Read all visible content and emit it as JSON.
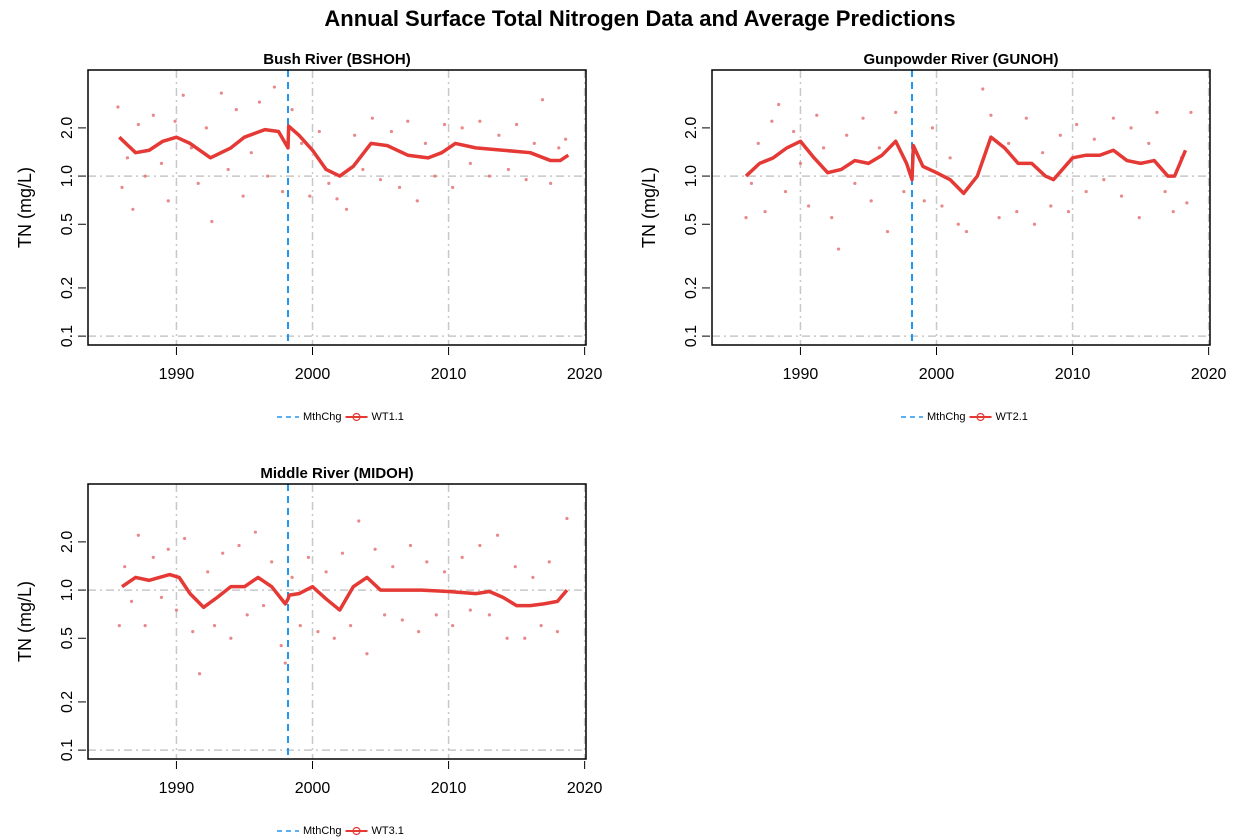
{
  "title": "Annual Surface Total Nitrogen Data and Average Predictions",
  "chart_data": [
    {
      "type": "line",
      "title": "Bush River (BSHOH)",
      "y_label": "TN (mg/L)",
      "log_y": true,
      "grid": true,
      "legend": "bottom",
      "xlim": [
        1983.5,
        2020.1
      ],
      "ylim": [
        0.088,
        4.6
      ],
      "xticks": [
        1990,
        2000,
        2010,
        2020
      ],
      "yticks": [
        0.1,
        0.2,
        0.5,
        {
          "value": 1,
          "label": "1.0"
        },
        {
          "value": 2,
          "label": "2.0"
        }
      ],
      "points": {
        "color": "#e57373",
        "x": [
          1985.7,
          1986,
          1986.4,
          1986.8,
          1987.2,
          1987.7,
          1988.3,
          1988.9,
          1989.4,
          1989.9,
          1990.5,
          1991.1,
          1991.6,
          1992.2,
          1992.6,
          1993.3,
          1993.8,
          1994.4,
          1994.9,
          1995.5,
          1996.1,
          1996.7,
          1997.2,
          1997.8,
          1998.5,
          1999.2,
          1999.8,
          2000.5,
          2001.2,
          2001.8,
          2002.5,
          2003.1,
          2003.7,
          2004.4,
          2005,
          2005.8,
          2006.4,
          2007,
          2007.7,
          2008.3,
          2009,
          2009.7,
          2010.3,
          2011,
          2011.6,
          2012.3,
          2013,
          2013.7,
          2014.4,
          2015,
          2015.7,
          2016.3,
          2016.9,
          2017.5,
          2018.1,
          2018.6
        ],
        "values": [
          2.7,
          0.85,
          1.3,
          0.62,
          2.1,
          1.0,
          2.4,
          1.2,
          0.7,
          2.2,
          3.2,
          1.5,
          0.9,
          2.0,
          0.52,
          3.3,
          1.1,
          2.6,
          0.75,
          1.4,
          2.9,
          1.0,
          3.6,
          0.8,
          2.6,
          1.6,
          0.75,
          1.9,
          0.9,
          0.72,
          0.62,
          1.8,
          1.1,
          2.3,
          0.95,
          1.9,
          0.85,
          2.2,
          0.7,
          1.6,
          1.0,
          2.1,
          0.85,
          2.0,
          1.2,
          2.2,
          1.0,
          1.8,
          1.1,
          2.1,
          0.95,
          1.6,
          3.0,
          0.9,
          1.5,
          1.7
        ]
      },
      "series": [
        {
          "name": "MthChg",
          "color": "#2196f3",
          "x": 1998.2
        },
        {
          "name": "WT1.1",
          "color": "#e53935",
          "x": [
            1985.8,
            1987,
            1988,
            1989,
            1990,
            1991,
            1992.5,
            1994,
            1995,
            1996.5,
            1997.5,
            1998.2,
            1998.25,
            1999,
            2000,
            2001,
            2002,
            2003,
            2004.3,
            2005.5,
            2007,
            2008.5,
            2009.5,
            2010.5,
            2012,
            2014,
            2016,
            2017.5,
            2018.2,
            2018.8
          ],
          "values": [
            1.75,
            1.4,
            1.45,
            1.65,
            1.75,
            1.6,
            1.3,
            1.5,
            1.75,
            1.95,
            1.9,
            1.5,
            2.05,
            1.8,
            1.45,
            1.1,
            1.0,
            1.15,
            1.6,
            1.55,
            1.35,
            1.3,
            1.4,
            1.6,
            1.5,
            1.45,
            1.4,
            1.25,
            1.25,
            1.35
          ]
        }
      ]
    },
    {
      "type": "line",
      "title": "Gunpowder River (GUNOH)",
      "y_label": "TN (mg/L)",
      "log_y": true,
      "grid": true,
      "legend": "bottom",
      "xlim": [
        1983.5,
        2020.1
      ],
      "ylim": [
        0.088,
        4.6
      ],
      "xticks": [
        1990,
        2000,
        2010,
        2020
      ],
      "yticks": [
        0.1,
        0.2,
        0.5,
        {
          "value": 1,
          "label": "1.0"
        },
        {
          "value": 2,
          "label": "2.0"
        }
      ],
      "points": {
        "color": "#e57373",
        "x": [
          1986,
          1986.4,
          1986.9,
          1987.4,
          1987.9,
          1988.4,
          1988.9,
          1989.5,
          1990,
          1990.6,
          1991.2,
          1991.7,
          1992.3,
          1992.8,
          1993.4,
          1994,
          1994.6,
          1995.2,
          1995.8,
          1996.4,
          1997,
          1997.6,
          1998.5,
          1999.1,
          1999.7,
          2000.4,
          2001,
          2001.6,
          2002.2,
          2002.8,
          2003.4,
          2004,
          2004.6,
          2005.3,
          2005.9,
          2006.6,
          2007.2,
          2007.8,
          2008.4,
          2009.1,
          2009.7,
          2010.3,
          2011,
          2011.6,
          2012.3,
          2013,
          2013.6,
          2014.3,
          2014.9,
          2015.6,
          2016.2,
          2016.8,
          2017.4,
          2018,
          2018.4,
          2018.7
        ],
        "values": [
          0.55,
          0.9,
          1.6,
          0.6,
          2.2,
          2.8,
          0.8,
          1.9,
          1.2,
          0.65,
          2.4,
          1.5,
          0.55,
          0.35,
          1.8,
          0.9,
          2.3,
          0.7,
          1.5,
          0.45,
          2.5,
          0.8,
          1.4,
          0.7,
          2.0,
          0.65,
          1.3,
          0.5,
          0.45,
          0.95,
          3.5,
          2.4,
          0.55,
          1.6,
          0.6,
          2.3,
          0.5,
          1.4,
          0.65,
          1.8,
          0.6,
          2.1,
          0.8,
          1.7,
          0.95,
          2.3,
          0.75,
          2.0,
          0.55,
          1.6,
          2.5,
          0.8,
          0.6,
          1.3,
          0.68,
          2.5
        ]
      },
      "series": [
        {
          "name": "MthChg",
          "color": "#2196f3",
          "x": 1998.2
        },
        {
          "name": "WT2.1",
          "color": "#e53935",
          "x": [
            1986,
            1987,
            1988,
            1989,
            1990,
            1991,
            1992,
            1993,
            1994,
            1995,
            1996,
            1997,
            1997.8,
            1998.2,
            1998.3,
            1999,
            2000,
            2001,
            2002,
            2003,
            2004,
            2005,
            2006,
            2007,
            2008,
            2008.6,
            2010,
            2011,
            2012,
            2013,
            2014,
            2015,
            2016,
            2017,
            2017.5,
            2018.3
          ],
          "values": [
            1.0,
            1.2,
            1.3,
            1.5,
            1.65,
            1.3,
            1.05,
            1.1,
            1.25,
            1.2,
            1.35,
            1.65,
            1.2,
            0.95,
            1.55,
            1.15,
            1.05,
            0.95,
            0.78,
            1.0,
            1.75,
            1.5,
            1.2,
            1.2,
            1.0,
            0.95,
            1.3,
            1.35,
            1.35,
            1.45,
            1.25,
            1.2,
            1.25,
            1.0,
            1.0,
            1.45
          ]
        }
      ]
    },
    {
      "type": "line",
      "title": "Middle River (MIDOH)",
      "y_label": "TN (mg/L)",
      "log_y": true,
      "grid": true,
      "legend": "bottom",
      "xlim": [
        1983.5,
        2020.1
      ],
      "ylim": [
        0.088,
        4.6
      ],
      "xticks": [
        1990,
        2000,
        2010,
        2020
      ],
      "yticks": [
        0.1,
        0.2,
        0.5,
        {
          "value": 1,
          "label": "1.0"
        },
        {
          "value": 2,
          "label": "2.0"
        }
      ],
      "points": {
        "color": "#e57373",
        "x": [
          1985.8,
          1986.2,
          1986.7,
          1987.2,
          1987.7,
          1988.3,
          1988.9,
          1989.4,
          1990,
          1990.6,
          1991.2,
          1991.7,
          1992.3,
          1992.8,
          1993.4,
          1994,
          1994.6,
          1995.2,
          1995.8,
          1996.4,
          1997,
          1997.7,
          1998,
          1998.5,
          1999.1,
          1999.7,
          2000.4,
          2001,
          2001.6,
          2002.2,
          2002.8,
          2003.4,
          2004,
          2004.6,
          2005.3,
          2005.9,
          2006.6,
          2007.2,
          2007.8,
          2008.4,
          2009.1,
          2009.7,
          2010.3,
          2011,
          2011.6,
          2012.3,
          2013,
          2013.6,
          2014.3,
          2014.9,
          2015.6,
          2016.2,
          2016.8,
          2017.4,
          2018,
          2018.7
        ],
        "values": [
          0.6,
          1.4,
          0.85,
          2.2,
          0.6,
          1.6,
          0.9,
          1.8,
          0.75,
          2.1,
          0.55,
          0.3,
          1.3,
          0.6,
          1.7,
          0.5,
          1.9,
          0.7,
          2.3,
          0.8,
          1.5,
          0.45,
          0.35,
          1.2,
          0.6,
          1.6,
          0.55,
          1.3,
          0.5,
          1.7,
          0.6,
          2.7,
          0.4,
          1.8,
          0.7,
          1.4,
          0.65,
          1.9,
          0.55,
          1.5,
          0.7,
          1.3,
          0.6,
          1.6,
          0.75,
          1.9,
          0.7,
          2.2,
          0.5,
          1.4,
          0.5,
          1.2,
          0.6,
          1.5,
          0.55,
          2.8
        ]
      },
      "series": [
        {
          "name": "MthChg",
          "color": "#2196f3",
          "x": 1998.2
        },
        {
          "name": "WT3.1",
          "color": "#e53935",
          "x": [
            1986,
            1987,
            1988,
            1989.5,
            1990.2,
            1991,
            1992,
            1993,
            1994,
            1995,
            1996,
            1997,
            1998,
            1998.2,
            1998.3,
            1999,
            2000,
            2001,
            2002,
            2003,
            2004,
            2005,
            2006,
            2008,
            2010,
            2012,
            2013,
            2014,
            2015,
            2016,
            2017,
            2018,
            2018.7
          ],
          "values": [
            1.05,
            1.2,
            1.15,
            1.25,
            1.2,
            0.95,
            0.78,
            0.9,
            1.05,
            1.05,
            1.2,
            1.05,
            0.82,
            0.88,
            0.93,
            0.95,
            1.05,
            0.88,
            0.75,
            1.05,
            1.2,
            1.0,
            1.0,
            1.0,
            0.98,
            0.95,
            0.98,
            0.9,
            0.8,
            0.8,
            0.82,
            0.85,
            1.0
          ]
        }
      ]
    }
  ]
}
